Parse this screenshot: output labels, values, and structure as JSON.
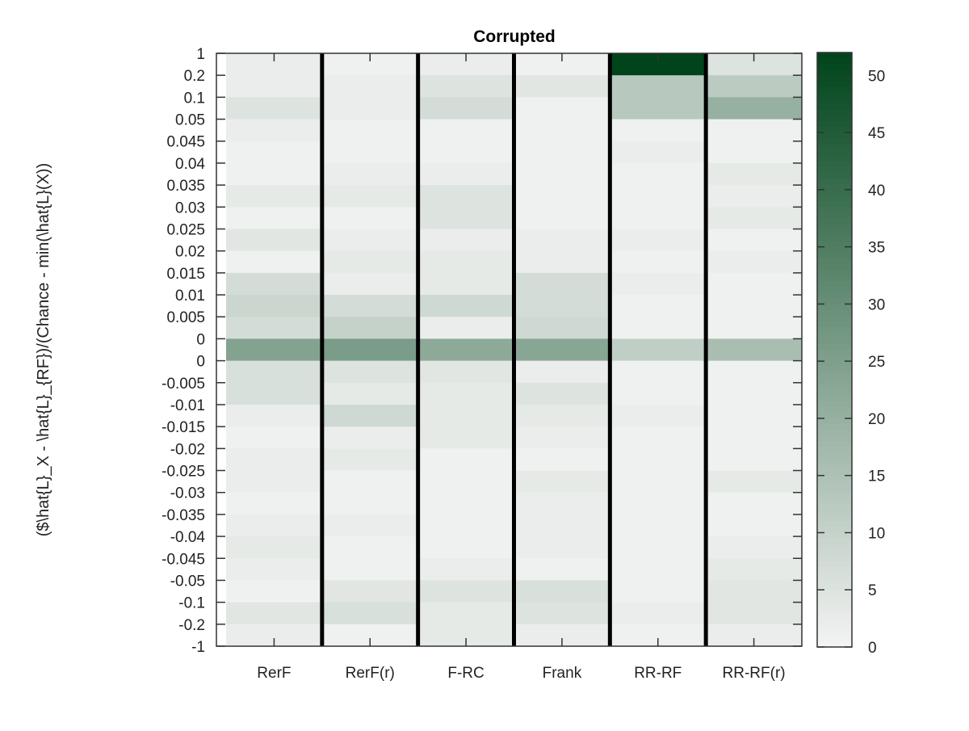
{
  "chart_data": {
    "type": "heatmap",
    "title": "Corrupted",
    "xlabel": "",
    "ylabel": "($\\hat{L}_X - \\hat{L}_{RF})/(Chance - min(\\hat{L}(X))",
    "columns": [
      "RerF",
      "RerF(r)",
      "F-RC",
      "Frank",
      "RR-RF",
      "RR-RF(r)"
    ],
    "y_tick_labels": [
      "1",
      "0.2",
      "0.1",
      "0.05",
      "0.045",
      "0.04",
      "0.035",
      "0.03",
      "0.025",
      "0.02",
      "0.015",
      "0.01",
      "0.005",
      "0",
      "0",
      "-0.005",
      "-0.01",
      "-0.015",
      "-0.02",
      "-0.025",
      "-0.03",
      "-0.035",
      "-0.04",
      "-0.045",
      "-0.05",
      "-0.1",
      "-0.2",
      "-1"
    ],
    "bin_count": 27,
    "values_note": "Each column lists cell values from top bin (between 1 and 0.2) to bottom bin (between -0.2 and -1)",
    "values": [
      [
        2,
        2,
        5,
        2,
        1,
        1,
        3,
        1,
        4,
        1,
        7,
        9,
        7,
        24,
        6,
        6,
        2,
        1,
        2,
        2,
        1,
        2,
        3,
        2,
        1,
        4,
        2
      ],
      [
        1,
        2,
        2,
        1,
        1,
        2,
        3,
        1,
        2,
        3,
        2,
        7,
        10,
        26,
        5,
        3,
        8,
        2,
        3,
        1,
        1,
        2,
        1,
        1,
        4,
        6,
        1
      ],
      [
        2,
        5,
        7,
        1,
        1,
        2,
        5,
        5,
        2,
        3,
        3,
        8,
        2,
        22,
        4,
        3,
        3,
        3,
        1,
        1,
        1,
        1,
        1,
        2,
        5,
        3,
        3
      ],
      [
        1,
        4,
        1,
        1,
        1,
        1,
        1,
        1,
        2,
        2,
        7,
        7,
        8,
        23,
        2,
        5,
        3,
        2,
        1,
        3,
        2,
        2,
        2,
        1,
        6,
        5,
        2
      ],
      [
        52,
        13,
        13,
        1,
        2,
        1,
        1,
        1,
        2,
        1,
        2,
        1,
        1,
        11,
        1,
        1,
        2,
        1,
        1,
        1,
        1,
        1,
        1,
        1,
        1,
        2,
        1
      ],
      [
        5,
        12,
        20,
        1,
        1,
        3,
        2,
        3,
        1,
        2,
        1,
        1,
        1,
        16,
        1,
        1,
        1,
        1,
        1,
        3,
        1,
        1,
        2,
        3,
        4,
        4,
        2
      ]
    ],
    "colorbar": {
      "min": 0,
      "max": 52,
      "ticks": [
        0,
        5,
        10,
        15,
        20,
        25,
        30,
        35,
        40,
        45,
        50
      ],
      "color_low": "#f4f4f4",
      "color_high": "#00441b"
    },
    "column_separator_color": "#000000",
    "grid": false
  }
}
